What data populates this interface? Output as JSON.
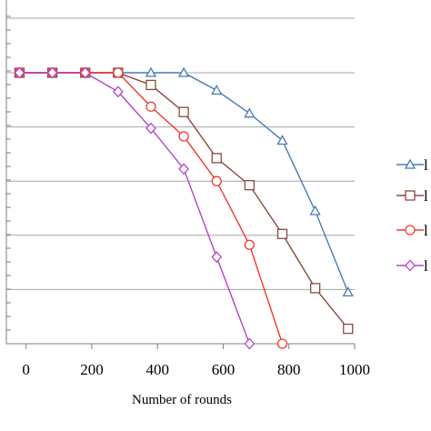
{
  "chart_data": {
    "type": "line",
    "xlabel": "Number of rounds",
    "ylabel": "",
    "title": "",
    "xlim": [
      -60,
      1000
    ],
    "ylim": [
      0,
      100
    ],
    "x_ticks": [
      0,
      200,
      400,
      600,
      800,
      1000
    ],
    "x_tick_labels": [
      "0",
      "200",
      "400",
      "600",
      "800",
      "1000"
    ],
    "y_gridlines": [
      0,
      20,
      40,
      60,
      80,
      100
    ],
    "grid": "horizontal",
    "legend_position": "right (cropped)",
    "legend_entries": [
      "l",
      "l",
      "l",
      "l"
    ],
    "series": [
      {
        "marker": "triangle",
        "color": "#4a7ab5",
        "x": [
          -20,
          80,
          180,
          280,
          380,
          480,
          580,
          680,
          780,
          880,
          980
        ],
        "y": [
          100,
          100,
          100,
          100,
          100,
          100,
          93.5,
          85,
          75,
          49,
          19
        ]
      },
      {
        "marker": "square",
        "color": "#8b4a3f",
        "x": [
          -20,
          80,
          180,
          280,
          380,
          480,
          580,
          680,
          780,
          880,
          980
        ],
        "y": [
          100,
          100,
          100,
          100,
          95.5,
          85.5,
          68.5,
          58.5,
          40.5,
          20.5,
          5.5
        ]
      },
      {
        "marker": "circle",
        "color": "#ef3b32",
        "x": [
          -20,
          80,
          180,
          280,
          380,
          480,
          580,
          680,
          780
        ],
        "y": [
          100,
          100,
          100,
          100,
          87.5,
          76.5,
          60,
          36.5,
          0
        ]
      },
      {
        "marker": "diamond",
        "color": "#b742c9",
        "x": [
          -20,
          80,
          180,
          280,
          380,
          480,
          580,
          680
        ],
        "y": [
          100,
          100,
          100,
          93,
          79.5,
          64.5,
          32,
          0
        ]
      }
    ]
  }
}
